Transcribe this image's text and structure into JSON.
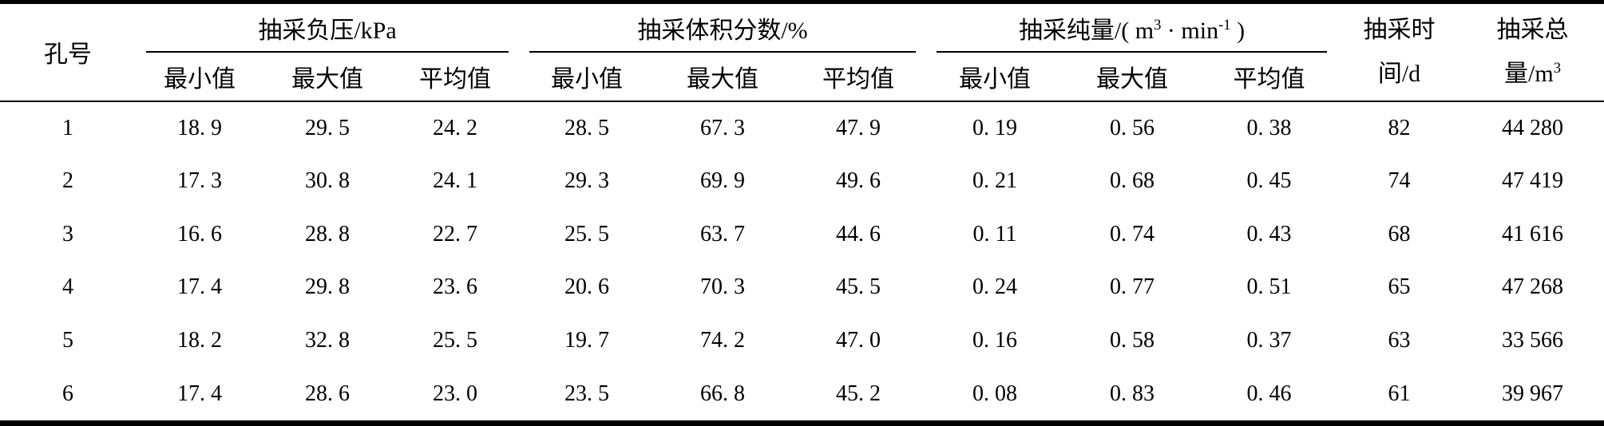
{
  "table": {
    "col1_header": "孔号",
    "groups": [
      {
        "label": "抽采负压/kPa",
        "sub": [
          "最小值",
          "最大值",
          "平均值"
        ]
      },
      {
        "label": "抽采体积分数/%",
        "sub": [
          "最小值",
          "最大值",
          "平均值"
        ]
      },
      {
        "label_parts": [
          "抽采纯量/( m",
          "3",
          " · min",
          "-1",
          " )"
        ],
        "sub": [
          "最小值",
          "最大值",
          "平均值"
        ]
      }
    ],
    "time_header": {
      "line1": "抽采时",
      "line2": "间/d"
    },
    "total_header": {
      "line1": "抽采总",
      "line2_main": "量/m",
      "line2_sup": "3"
    },
    "rows": [
      [
        "1",
        "18. 9",
        "29. 5",
        "24. 2",
        "28. 5",
        "67. 3",
        "47. 9",
        "0. 19",
        "0. 56",
        "0. 38",
        "82",
        "44 280"
      ],
      [
        "2",
        "17. 3",
        "30. 8",
        "24. 1",
        "29. 3",
        "69. 9",
        "49. 6",
        "0. 21",
        "0. 68",
        "0. 45",
        "74",
        "47 419"
      ],
      [
        "3",
        "16. 6",
        "28. 8",
        "22. 7",
        "25. 5",
        "63. 7",
        "44. 6",
        "0. 11",
        "0. 74",
        "0. 43",
        "68",
        "41 616"
      ],
      [
        "4",
        "17. 4",
        "29. 8",
        "23. 6",
        "20. 6",
        "70. 3",
        "45. 5",
        "0. 24",
        "0. 77",
        "0. 51",
        "65",
        "47 268"
      ],
      [
        "5",
        "18. 2",
        "32. 8",
        "25. 5",
        "19. 7",
        "74. 2",
        "47. 0",
        "0. 16",
        "0. 58",
        "0. 37",
        "63",
        "33 566"
      ],
      [
        "6",
        "17. 4",
        "28. 6",
        "23. 0",
        "23. 5",
        "66. 8",
        "45. 2",
        "0. 08",
        "0. 83",
        "0. 46",
        "61",
        "39 967"
      ]
    ],
    "colors": {
      "text": "#000000",
      "background": "#ffffff",
      "rule": "#000000"
    }
  }
}
